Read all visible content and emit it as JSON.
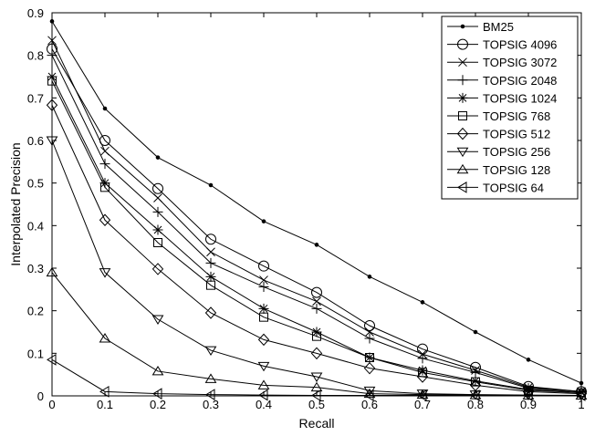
{
  "chart_data": {
    "type": "line",
    "xlabel": "Recall",
    "ylabel": "Interpolated Precision",
    "xlim": [
      0,
      1
    ],
    "ylim": [
      0,
      0.9
    ],
    "grid": false,
    "legend_position": "top-right",
    "x": [
      0,
      0.1,
      0.2,
      0.3,
      0.4,
      0.5,
      0.6,
      0.7,
      0.8,
      0.9,
      1
    ],
    "x_tick_labels": [
      "0",
      "0.1",
      "0.2",
      "0.3",
      "0.4",
      "0.5",
      "0.6",
      "0.7",
      "0.8",
      "0.9",
      "1"
    ],
    "y_ticks": [
      0,
      0.1,
      0.2,
      0.3,
      0.4,
      0.5,
      0.6,
      0.7,
      0.8,
      0.9
    ],
    "y_tick_labels": [
      "0",
      "0.1",
      "0.2",
      "0.3",
      "0.4",
      "0.5",
      "0.6",
      "0.7",
      "0.8",
      "0.9"
    ],
    "series": [
      {
        "name": "BM25",
        "marker": "dot",
        "values": [
          0.88,
          0.675,
          0.56,
          0.495,
          0.41,
          0.355,
          0.28,
          0.22,
          0.15,
          0.085,
          0.03
        ]
      },
      {
        "name": "TOPSIG 4096",
        "marker": "circle",
        "values": [
          0.815,
          0.6,
          0.487,
          0.368,
          0.305,
          0.243,
          0.165,
          0.11,
          0.067,
          0.022,
          0.01
        ]
      },
      {
        "name": "TOPSIG 3072",
        "marker": "x",
        "values": [
          0.835,
          0.575,
          0.465,
          0.338,
          0.272,
          0.222,
          0.15,
          0.098,
          0.06,
          0.02,
          0.01
        ]
      },
      {
        "name": "TOPSIG 2048",
        "marker": "plus",
        "values": [
          0.8,
          0.545,
          0.432,
          0.312,
          0.256,
          0.205,
          0.135,
          0.088,
          0.055,
          0.018,
          0.01
        ]
      },
      {
        "name": "TOPSIG 1024",
        "marker": "star",
        "values": [
          0.75,
          0.5,
          0.39,
          0.28,
          0.205,
          0.15,
          0.09,
          0.06,
          0.035,
          0.015,
          0.008
        ]
      },
      {
        "name": "TOPSIG 768",
        "marker": "square",
        "values": [
          0.74,
          0.49,
          0.36,
          0.26,
          0.185,
          0.14,
          0.09,
          0.055,
          0.033,
          0.013,
          0.007
        ]
      },
      {
        "name": "TOPSIG 512",
        "marker": "diamond",
        "values": [
          0.683,
          0.413,
          0.298,
          0.195,
          0.132,
          0.1,
          0.065,
          0.045,
          0.025,
          0.01,
          0.005
        ]
      },
      {
        "name": "TOPSIG 256",
        "marker": "triangle-down",
        "values": [
          0.6,
          0.29,
          0.18,
          0.107,
          0.07,
          0.045,
          0.012,
          0.005,
          0.003,
          0.002,
          0.001
        ]
      },
      {
        "name": "TOPSIG 128",
        "marker": "triangle-up",
        "values": [
          0.29,
          0.135,
          0.058,
          0.04,
          0.025,
          0.02,
          0.005,
          0.003,
          0.002,
          0.001,
          0.001
        ]
      },
      {
        "name": "TOPSIG 64",
        "marker": "triangle-left",
        "values": [
          0.085,
          0.01,
          0.005,
          0.003,
          0.002,
          0.001,
          0.001,
          0.001,
          0.001,
          0.001,
          0.001
        ]
      }
    ]
  }
}
